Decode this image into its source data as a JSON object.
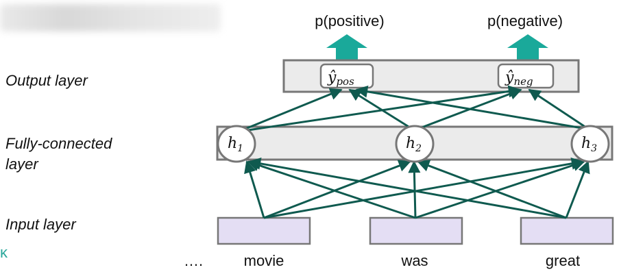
{
  "layers": {
    "output": "Output layer",
    "fully_connected_line1": "Fully-connected",
    "fully_connected_line2": "layer",
    "input": "Input layer"
  },
  "outputs": {
    "pos_prob": "p(positive)",
    "neg_prob": "p(negative)",
    "pos_symbol": "ŷ",
    "pos_sub": "pos",
    "neg_symbol": "ŷ",
    "neg_sub": "neg"
  },
  "hidden_units": [
    {
      "symbol": "h",
      "sub": "1"
    },
    {
      "symbol": "h",
      "sub": "2"
    },
    {
      "symbol": "h",
      "sub": "3"
    }
  ],
  "inputs": {
    "ellipsis": "….",
    "words": [
      "movie",
      "was",
      "great"
    ]
  },
  "corner_mark": "κ",
  "colors": {
    "arrow_fill": "#1aa99a",
    "edge_stroke": "#0f5a4f",
    "input_box": "#e4def4",
    "layer_box": "#ebebeb",
    "box_border": "#777777"
  }
}
